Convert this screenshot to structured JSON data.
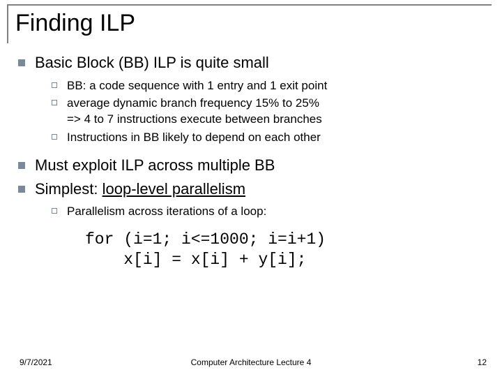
{
  "title": "Finding ILP",
  "bullets": {
    "b1": "Basic Block (BB) ILP is quite small",
    "b1_subs": {
      "s1": "BB: a code sequence with 1 entry and 1 exit point",
      "s2a": "average dynamic branch frequency 15% to 25%",
      "s2b": "=> 4 to 7 instructions execute between branches",
      "s3": "Instructions in BB likely to depend on each other"
    },
    "b2": "Must exploit ILP across multiple BB",
    "b3_pre": "Simplest: ",
    "b3_underlined": "loop-level parallelism",
    "b3_subs": {
      "s1": "Parallelism across iterations of a loop:"
    }
  },
  "code": {
    "line1": "for (i=1; i<=1000; i=i+1)",
    "line2": "    x[i] = x[i] + y[i];"
  },
  "footer": {
    "date": "9/7/2021",
    "center": "Computer Architecture Lecture 4",
    "page": "12"
  },
  "style": {
    "bullet_color": "#7a8a9a",
    "title_fontsize": 34,
    "l1_fontsize": 22,
    "l2_fontsize": 17,
    "code_fontsize": 23,
    "footer_fontsize": 12
  }
}
